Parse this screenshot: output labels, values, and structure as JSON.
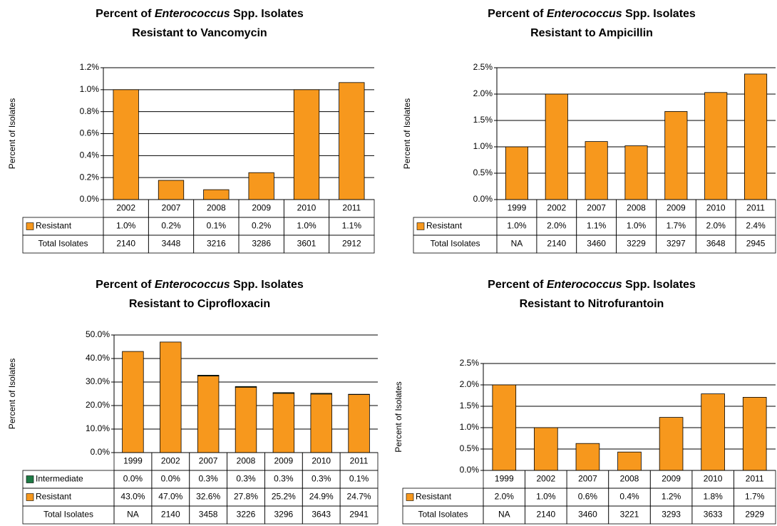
{
  "chart_data": [
    {
      "type": "bar",
      "title": "Percent of Enterococcus Spp. Isolates",
      "title_italic": "Enterococcus",
      "subtitle": "Resistant to Vancomycin",
      "y_label": "Percent of Isolates",
      "categories": [
        "2002",
        "2007",
        "2008",
        "2009",
        "2010",
        "2011"
      ],
      "series": [
        {
          "name": "Resistant",
          "color": "#f7981d",
          "values": [
            1.0,
            0.175,
            0.09,
            0.245,
            1.0,
            1.065
          ],
          "value_labels": [
            "1.0%",
            "0.2%",
            "0.1%",
            "0.2%",
            "1.0%",
            "1.1%"
          ]
        }
      ],
      "total_isolates": {
        "name": "Total Isolates",
        "values": [
          "2140",
          "3448",
          "3216",
          "3286",
          "3601",
          "2912"
        ]
      },
      "ylim": [
        0,
        1.2
      ],
      "yticks": [
        {
          "value": 0,
          "label": "0.0%"
        },
        {
          "value": 0.2,
          "label": "0.2%"
        },
        {
          "value": 0.4,
          "label": "0.4%"
        },
        {
          "value": 0.6,
          "label": "0.6%"
        },
        {
          "value": 0.8,
          "label": "0.8%"
        },
        {
          "value": 1.0,
          "label": "1.0%"
        },
        {
          "value": 1.2,
          "label": "1.2%"
        }
      ],
      "grid": true
    },
    {
      "type": "bar",
      "title": "Percent of Enterococcus  Spp. Isolates",
      "title_italic": "Enterococcus",
      "subtitle": "Resistant to Ampicillin",
      "y_label": "Percent of Isolates",
      "categories": [
        "1999",
        "2002",
        "2007",
        "2008",
        "2009",
        "2010",
        "2011"
      ],
      "series": [
        {
          "name": "Resistant",
          "color": "#f7981d",
          "values": [
            1.0,
            2.0,
            1.1,
            1.02,
            1.67,
            2.03,
            2.38
          ],
          "value_labels": [
            "1.0%",
            "2.0%",
            "1.1%",
            "1.0%",
            "1.7%",
            "2.0%",
            "2.4%"
          ]
        }
      ],
      "total_isolates": {
        "name": "Total Isolates",
        "values": [
          "NA",
          "2140",
          "3460",
          "3229",
          "3297",
          "3648",
          "2945"
        ]
      },
      "ylim": [
        0,
        2.5
      ],
      "yticks": [
        {
          "value": 0,
          "label": "0.0%"
        },
        {
          "value": 0.5,
          "label": "0.5%"
        },
        {
          "value": 1.0,
          "label": "1.0%"
        },
        {
          "value": 1.5,
          "label": "1.5%"
        },
        {
          "value": 2.0,
          "label": "2.0%"
        },
        {
          "value": 2.5,
          "label": "2.5%"
        }
      ],
      "grid": true
    },
    {
      "type": "stacked_bar",
      "title": "Percent of Enterococcus Spp. Isolates",
      "title_italic": "Enterococcus",
      "subtitle": "Resistant to Ciprofloxacin",
      "y_label": "Percent of Isolates",
      "categories": [
        "1999",
        "2002",
        "2007",
        "2008",
        "2009",
        "2010",
        "2011"
      ],
      "series": [
        {
          "name": "Intermediate",
          "color": "#1e7b45",
          "values": [
            0.0,
            0.0,
            0.3,
            0.3,
            0.3,
            0.3,
            0.1
          ],
          "value_labels": [
            "0.0%",
            "0.0%",
            "0.3%",
            "0.3%",
            "0.3%",
            "0.3%",
            "0.1%"
          ]
        },
        {
          "name": "Resistant",
          "color": "#f7981d",
          "values": [
            43.0,
            47.0,
            32.6,
            27.8,
            25.2,
            24.9,
            24.7
          ],
          "value_labels": [
            "43.0%",
            "47.0%",
            "32.6%",
            "27.8%",
            "25.2%",
            "24.9%",
            "24.7%"
          ]
        }
      ],
      "total_isolates": {
        "name": "Total Isolates",
        "values": [
          "NA",
          "2140",
          "3458",
          "3226",
          "3296",
          "3643",
          "2941"
        ]
      },
      "ylim": [
        0,
        50
      ],
      "yticks": [
        {
          "value": 0,
          "label": "0.0%"
        },
        {
          "value": 10,
          "label": "10.0%"
        },
        {
          "value": 20,
          "label": "20.0%"
        },
        {
          "value": 30,
          "label": "30.0%"
        },
        {
          "value": 40,
          "label": "40.0%"
        },
        {
          "value": 50,
          "label": "50.0%"
        }
      ],
      "grid": true
    },
    {
      "type": "bar",
      "title": "Percent of Enterococcus Spp. Isolates",
      "title_italic": "Enterococcus",
      "subtitle": "Resistant to Nitrofurantoin",
      "y_label": "Percent of Isolates",
      "categories": [
        "1999",
        "2002",
        "2007",
        "2008",
        "2009",
        "2010",
        "2011"
      ],
      "series": [
        {
          "name": "Resistant",
          "color": "#f7981d",
          "values": [
            2.0,
            1.0,
            0.63,
            0.43,
            1.24,
            1.79,
            1.71
          ],
          "value_labels": [
            "2.0%",
            "1.0%",
            "0.6%",
            "0.4%",
            "1.2%",
            "1.8%",
            "1.7%"
          ]
        }
      ],
      "total_isolates": {
        "name": "Total Isolates",
        "values": [
          "NA",
          "2140",
          "3460",
          "3221",
          "3293",
          "3633",
          "2929"
        ]
      },
      "ylim": [
        0,
        2.5
      ],
      "yticks": [
        {
          "value": 0,
          "label": "0.0%"
        },
        {
          "value": 0.5,
          "label": "0.5%"
        },
        {
          "value": 1.0,
          "label": "1.0%"
        },
        {
          "value": 1.5,
          "label": "1.5%"
        },
        {
          "value": 2.0,
          "label": "2.0%"
        },
        {
          "value": 2.5,
          "label": "2.5%"
        }
      ],
      "grid": true
    }
  ]
}
